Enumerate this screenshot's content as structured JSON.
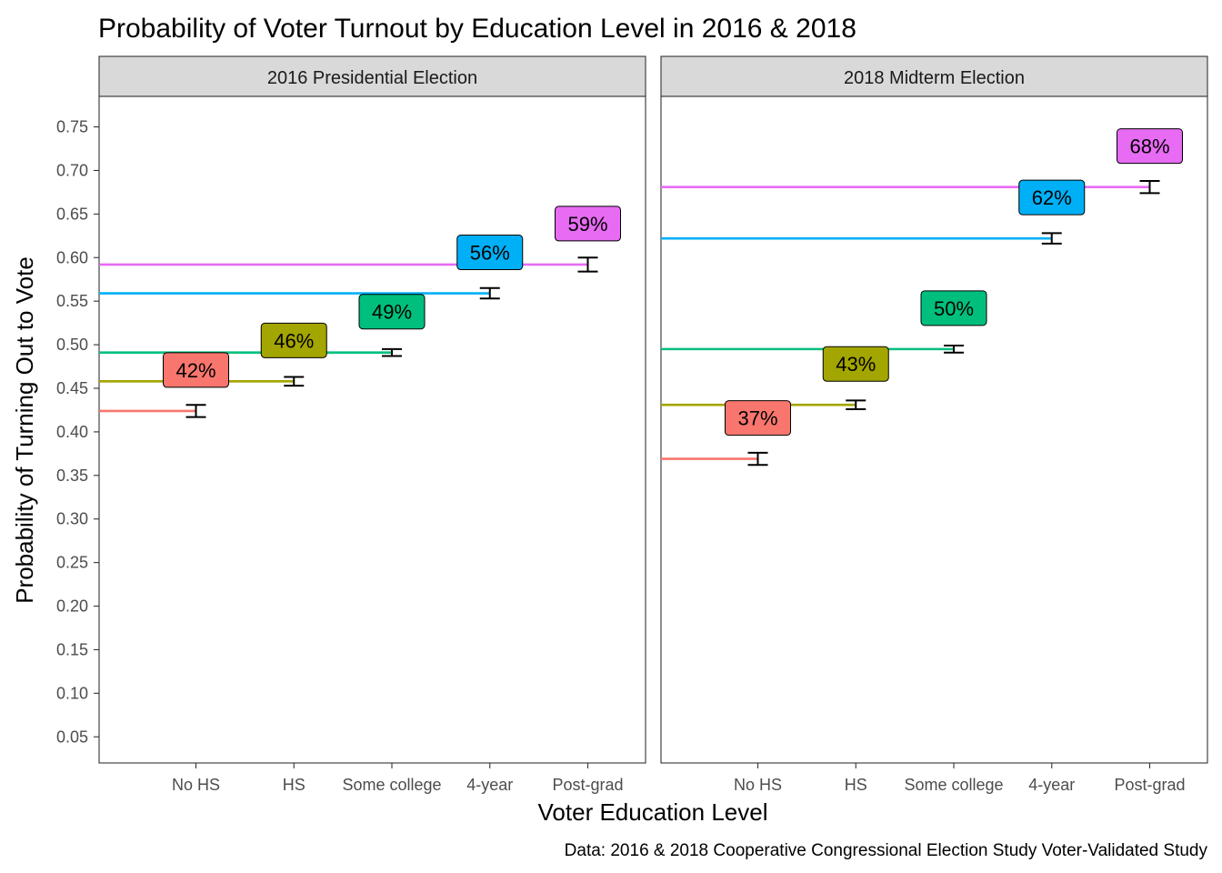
{
  "chart_data": {
    "type": "errorbar",
    "title": "Probability of Voter Turnout by Education Level in 2016 & 2018",
    "xlabel": "Voter Education Level",
    "ylabel": "Probability of Turning Out to Vote",
    "caption": "Data: 2016 & 2018 Cooperative Congressional Election Study Voter-Validated Study",
    "categories": [
      "No HS",
      "HS",
      "Some college",
      "4-year",
      "Post-grad"
    ],
    "ylim": [
      0.02,
      0.785
    ],
    "yticks": [
      0.05,
      0.1,
      0.15,
      0.2,
      0.25,
      0.3,
      0.35,
      0.4,
      0.45,
      0.5,
      0.55,
      0.6,
      0.65,
      0.7,
      0.75
    ],
    "ytick_labels": [
      "0.05",
      "0.10",
      "0.15",
      "0.20",
      "0.25",
      "0.30",
      "0.35",
      "0.40",
      "0.45",
      "0.50",
      "0.55",
      "0.60",
      "0.65",
      "0.70",
      "0.75"
    ],
    "colors": [
      "#F8766D",
      "#A3A500",
      "#00BF7D",
      "#00B0F6",
      "#E76BF3"
    ],
    "grid": false,
    "legend": "none",
    "panels": [
      {
        "label": "2016 Presidential Election",
        "values": [
          0.424,
          0.458,
          0.491,
          0.559,
          0.592
        ],
        "ci_low": [
          0.417,
          0.453,
          0.487,
          0.553,
          0.584
        ],
        "ci_high": [
          0.431,
          0.463,
          0.495,
          0.565,
          0.6
        ],
        "labels": [
          "42%",
          "46%",
          "49%",
          "56%",
          "59%"
        ]
      },
      {
        "label": "2018 Midterm Election",
        "values": [
          0.369,
          0.431,
          0.495,
          0.622,
          0.681
        ],
        "ci_low": [
          0.362,
          0.426,
          0.491,
          0.616,
          0.674
        ],
        "ci_high": [
          0.376,
          0.436,
          0.499,
          0.628,
          0.688
        ],
        "labels": [
          "37%",
          "43%",
          "50%",
          "62%",
          "68%"
        ]
      }
    ]
  }
}
